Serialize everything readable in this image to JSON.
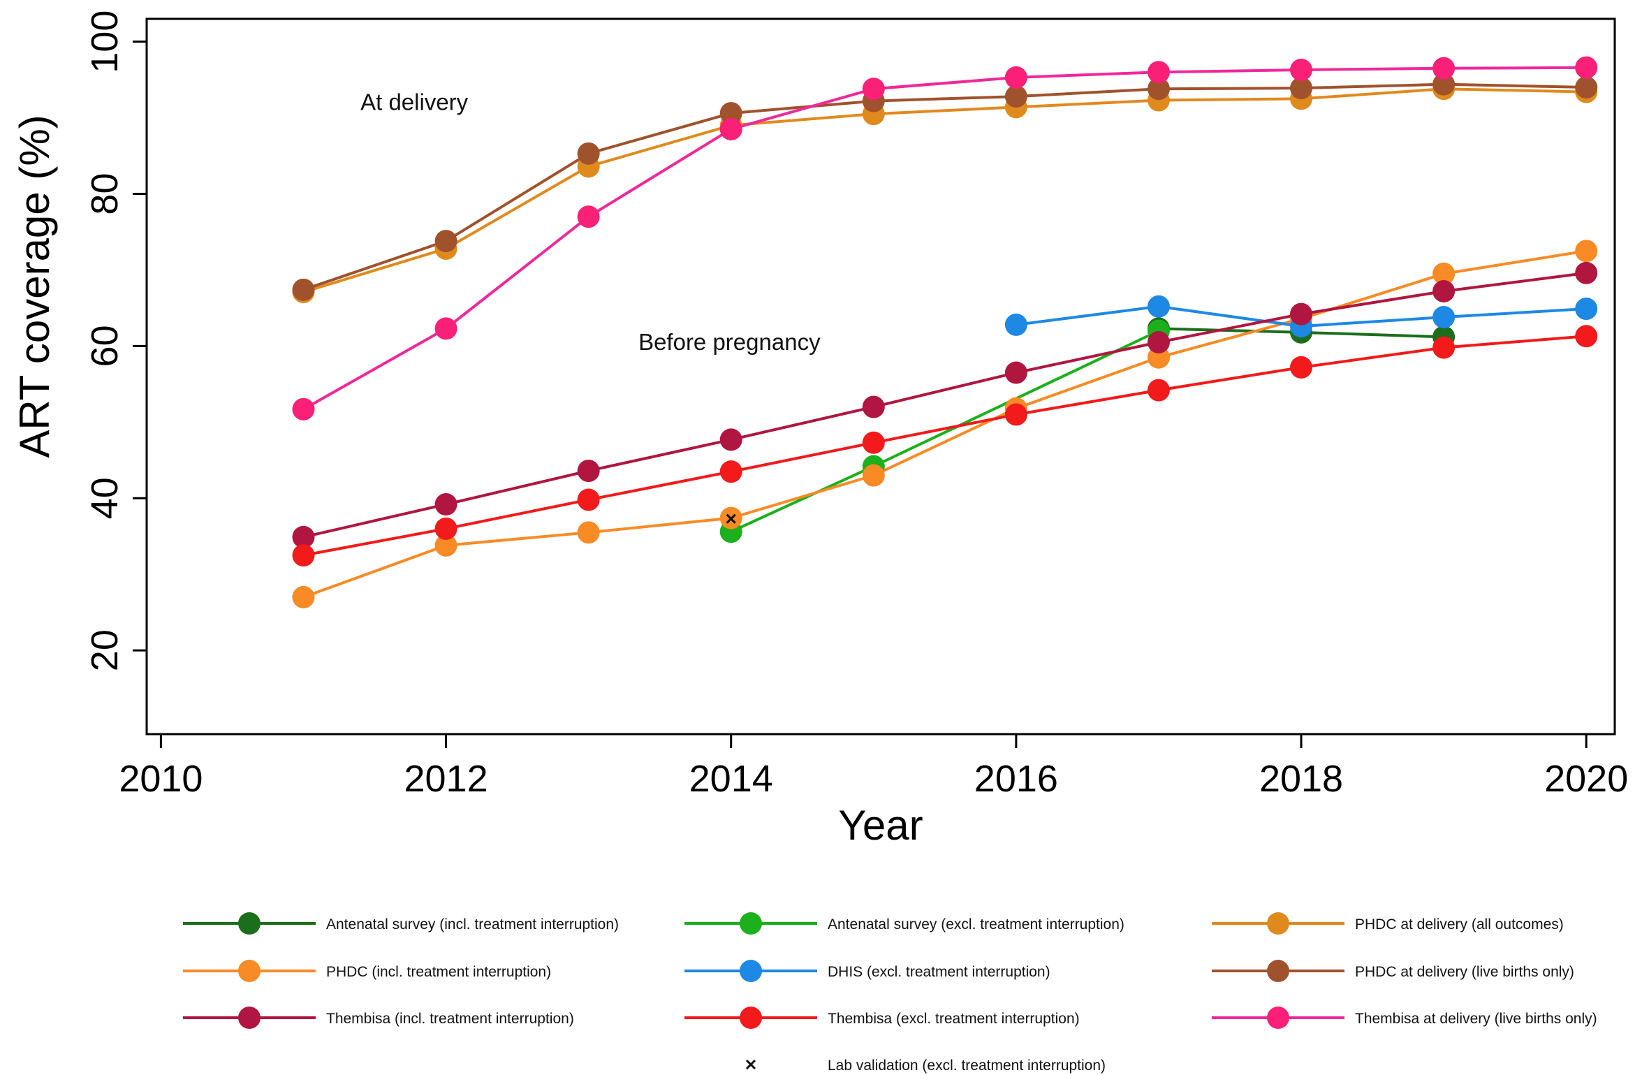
{
  "chart_data": {
    "type": "line",
    "xlabel": "Year",
    "ylabel": "ART  coverage (%)",
    "xlim": [
      2009.9,
      2020.2
    ],
    "ylim": [
      9,
      103
    ],
    "xticks": [
      2010,
      2012,
      2014,
      2016,
      2018,
      2020
    ],
    "yticks": [
      20,
      40,
      60,
      80,
      100
    ],
    "grid": false,
    "legend_position": "bottom",
    "annotations": [
      {
        "text": "At delivery",
        "x": 2011.4,
        "y": 91
      },
      {
        "text": "Before pregnancy",
        "x": 2013.35,
        "y": 59.5
      }
    ],
    "series": [
      {
        "name": "Antenatal survey (incl. treatment interruption)",
        "color": "#1b6e1b",
        "x": [
          2017,
          2018,
          2019
        ],
        "y": [
          62.3,
          61.8,
          61.2
        ]
      },
      {
        "name": "Antenatal survey (excl. treatment interruption)",
        "color": "#1cb01c",
        "x": [
          2014,
          2015,
          2017
        ],
        "y": [
          35.6,
          44.2,
          62.0
        ]
      },
      {
        "name": "PHDC at delivery (all outcomes)",
        "color": "#e08a1e",
        "x": [
          2011,
          2012,
          2013,
          2014,
          2015,
          2016,
          2017,
          2018,
          2019,
          2020
        ],
        "y": [
          67.1,
          72.8,
          83.6,
          89.0,
          90.5,
          91.4,
          92.3,
          92.5,
          93.8,
          93.4
        ]
      },
      {
        "name": "PHDC (incl. treatment interruption)",
        "color": "#f88b25",
        "x": [
          2011,
          2012,
          2013,
          2014,
          2015,
          2016,
          2017,
          2018,
          2019,
          2020
        ],
        "y": [
          27.0,
          33.8,
          35.5,
          37.4,
          43.0,
          51.8,
          58.5,
          63.6,
          69.5,
          72.5
        ]
      },
      {
        "name": "DHIS (excl. treatment interruption)",
        "color": "#1e88e5",
        "x": [
          2016,
          2017,
          2018,
          2019,
          2020
        ],
        "y": [
          62.8,
          65.2,
          62.6,
          63.8,
          64.9
        ]
      },
      {
        "name": "PHDC at delivery (live births only)",
        "color": "#a0522d",
        "x": [
          2011,
          2012,
          2013,
          2014,
          2015,
          2016,
          2017,
          2018,
          2019,
          2020
        ],
        "y": [
          67.4,
          73.8,
          85.3,
          90.6,
          92.2,
          92.8,
          93.8,
          93.9,
          94.4,
          94.0
        ]
      },
      {
        "name": "Thembisa (incl. treatment interruption)",
        "color": "#b0163f",
        "x": [
          2011,
          2012,
          2013,
          2014,
          2015,
          2016,
          2017,
          2018,
          2019,
          2020
        ],
        "y": [
          34.9,
          39.2,
          43.6,
          47.7,
          52.0,
          56.5,
          60.5,
          64.2,
          67.2,
          69.6
        ]
      },
      {
        "name": "Thembisa (excl. treatment interruption)",
        "color": "#f21a1a",
        "x": [
          2011,
          2012,
          2013,
          2014,
          2015,
          2016,
          2017,
          2018,
          2019,
          2020
        ],
        "y": [
          32.5,
          36.0,
          39.8,
          43.5,
          47.3,
          51.0,
          54.2,
          57.2,
          59.8,
          61.3
        ]
      },
      {
        "name": "Thembisa at delivery (live births only)",
        "color": "#f0289a",
        "marker_color": "#fa1f77",
        "x": [
          2011,
          2012,
          2013,
          2014,
          2015,
          2016,
          2017,
          2018,
          2019,
          2020
        ],
        "y": [
          51.7,
          62.3,
          77.0,
          88.5,
          93.8,
          95.3,
          96.0,
          96.3,
          96.5,
          96.6
        ]
      }
    ],
    "markers": [
      {
        "name": "Lab validation (excl. treatment interruption)",
        "symbol": "x",
        "x": [
          2014
        ],
        "y": [
          37.3
        ]
      }
    ]
  }
}
